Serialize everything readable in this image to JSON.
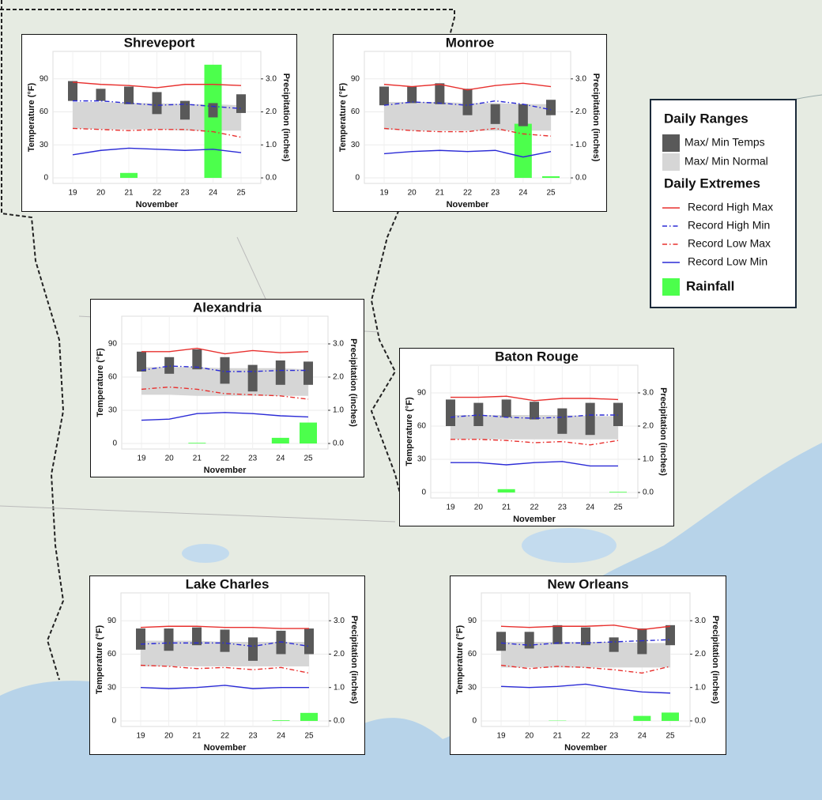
{
  "legend": {
    "headings": [
      "Daily Ranges",
      "Daily Extremes"
    ],
    "entries": [
      {
        "name": "Max/ Min Temps",
        "color": "#595959",
        "kind": "range"
      },
      {
        "name": "Max/ Min Normal",
        "color": "#d6d6d6",
        "kind": "band"
      },
      {
        "name": "Record High Max",
        "color": "#e8302e",
        "kind": "line",
        "dash": "solid"
      },
      {
        "name": "Record High Min",
        "color": "#2b2bd6",
        "kind": "line",
        "dash": "dashdot"
      },
      {
        "name": "Record Low Max",
        "color": "#e8302e",
        "kind": "line",
        "dash": "dashdot"
      },
      {
        "name": "Record Low Min",
        "color": "#2b2bd6",
        "kind": "line",
        "dash": "solid"
      },
      {
        "name": "Rainfall",
        "color": "#4cff4c",
        "kind": "bar"
      }
    ]
  },
  "chart_data": [
    {
      "type": "climate",
      "title": "Shreveport",
      "x_label": "November",
      "y_label": "Temperature (°F)",
      "y2_label": "Precipitation (inches)",
      "categories": [
        "19",
        "20",
        "21",
        "22",
        "23",
        "24",
        "25"
      ],
      "ylim": [
        -5,
        115
      ],
      "yticks": [
        0,
        30,
        60,
        90
      ],
      "y2lim": [
        -0.1667,
        3.8333
      ],
      "y2ticks": [
        {
          "value": 0,
          "label": "0.0"
        },
        {
          "value": 1,
          "label": "1.0"
        },
        {
          "value": 2,
          "label": "2.0"
        },
        {
          "value": 3,
          "label": "3.0"
        }
      ],
      "series": [
        {
          "low": [
            70,
            70,
            67,
            58,
            53,
            55,
            59
          ],
          "high": [
            88,
            81,
            83,
            78,
            70,
            68,
            76
          ]
        },
        {
          "low": [
            45,
            44,
            44,
            44,
            43,
            43,
            43
          ],
          "high": [
            69,
            69,
            68,
            68,
            67,
            67,
            66
          ]
        },
        {
          "values": [
            87,
            85,
            84,
            82,
            85,
            85,
            84
          ]
        },
        {
          "values": [
            70,
            70,
            68,
            66,
            67,
            65,
            63
          ]
        },
        {
          "values": [
            45,
            44,
            43,
            44,
            44,
            42,
            37
          ]
        },
        {
          "values": [
            21,
            25,
            27,
            26,
            25,
            26,
            23
          ]
        },
        {
          "values": [
            0,
            0,
            0.15,
            0,
            0,
            3.43,
            0
          ],
          "axis": "y2"
        }
      ]
    },
    {
      "type": "climate",
      "title": "Monroe",
      "x_label": "November",
      "y_label": "Temperature (°F)",
      "y2_label": "Precipitation (inches)",
      "categories": [
        "19",
        "20",
        "21",
        "22",
        "23",
        "24",
        "25"
      ],
      "ylim": [
        -5,
        115
      ],
      "yticks": [
        0,
        30,
        60,
        90
      ],
      "y2lim": [
        -0.1667,
        3.8333
      ],
      "y2ticks": [
        {
          "value": 0,
          "label": "0.0"
        },
        {
          "value": 1,
          "label": "1.0"
        },
        {
          "value": 2,
          "label": "2.0"
        },
        {
          "value": 3,
          "label": "3.0"
        }
      ],
      "series": [
        {
          "low": [
            66,
            68,
            67,
            57,
            49,
            47,
            57
          ],
          "high": [
            83,
            83,
            86,
            81,
            67,
            67,
            71
          ]
        },
        {
          "low": [
            44,
            43,
            43,
            43,
            43,
            43,
            43
          ],
          "high": [
            69,
            69,
            69,
            68,
            68,
            67,
            67
          ]
        },
        {
          "values": [
            85,
            83,
            85,
            80,
            84,
            86,
            83
          ]
        },
        {
          "values": [
            66,
            69,
            68,
            66,
            70,
            67,
            62
          ]
        },
        {
          "values": [
            45,
            43,
            42,
            42,
            45,
            40,
            38
          ]
        },
        {
          "values": [
            22,
            24,
            25,
            24,
            25,
            19,
            24
          ]
        },
        {
          "values": [
            0,
            0,
            0,
            0,
            0,
            1.64,
            0.05
          ],
          "axis": "y2"
        }
      ]
    },
    {
      "type": "climate",
      "title": "Alexandria",
      "x_label": "November",
      "y_label": "Temperature (°F)",
      "y2_label": "Precipitation (inches)",
      "categories": [
        "19",
        "20",
        "21",
        "22",
        "23",
        "24",
        "25"
      ],
      "ylim": [
        -5,
        115
      ],
      "yticks": [
        0,
        30,
        60,
        90
      ],
      "y2lim": [
        -0.1667,
        3.8333
      ],
      "y2ticks": [
        {
          "value": 0,
          "label": "0.0"
        },
        {
          "value": 1,
          "label": "1.0"
        },
        {
          "value": 2,
          "label": "2.0"
        },
        {
          "value": 3,
          "label": "3.0"
        }
      ],
      "series": [
        {
          "low": [
            65,
            63,
            67,
            54,
            47,
            53,
            53
          ],
          "high": [
            83,
            78,
            85,
            78,
            71,
            75,
            74
          ]
        },
        {
          "low": [
            44,
            44,
            43,
            43,
            43,
            43,
            43
          ],
          "high": [
            69,
            69,
            69,
            68,
            68,
            68,
            67
          ]
        },
        {
          "values": [
            83,
            83,
            86,
            81,
            84,
            82,
            83
          ]
        },
        {
          "values": [
            66,
            70,
            69,
            65,
            65,
            66,
            66
          ]
        },
        {
          "values": [
            49,
            51,
            49,
            45,
            44,
            43,
            40
          ]
        },
        {
          "values": [
            21,
            22,
            27,
            28,
            27,
            25,
            24
          ]
        },
        {
          "values": [
            0,
            0,
            0.02,
            0,
            0,
            0.17,
            0.63
          ],
          "axis": "y2"
        }
      ]
    },
    {
      "type": "climate",
      "title": "Baton Rouge",
      "x_label": "November",
      "y_label": "Temperature (°F)",
      "y2_label": "Precipitation (inches)",
      "categories": [
        "19",
        "20",
        "21",
        "22",
        "23",
        "24",
        "25"
      ],
      "ylim": [
        -5,
        115
      ],
      "yticks": [
        0,
        30,
        60,
        90
      ],
      "y2lim": [
        -0.1667,
        3.8333
      ],
      "y2ticks": [
        {
          "value": 0,
          "label": "0.0"
        },
        {
          "value": 1,
          "label": "1.0"
        },
        {
          "value": 2,
          "label": "2.0"
        },
        {
          "value": 3,
          "label": "3.0"
        }
      ],
      "series": [
        {
          "low": [
            60,
            60,
            68,
            66,
            53,
            52,
            60
          ],
          "high": [
            84,
            81,
            84,
            82,
            76,
            81,
            81
          ]
        },
        {
          "low": [
            48,
            48,
            48,
            48,
            48,
            48,
            48
          ],
          "high": [
            70,
            70,
            70,
            70,
            70,
            69,
            69
          ]
        },
        {
          "values": [
            86,
            86,
            87,
            83,
            85,
            85,
            84
          ]
        },
        {
          "values": [
            68,
            70,
            68,
            67,
            68,
            70,
            70
          ]
        },
        {
          "values": [
            48,
            48,
            47,
            45,
            46,
            43,
            47
          ]
        },
        {
          "values": [
            27,
            27,
            25,
            27,
            28,
            24,
            24
          ]
        },
        {
          "values": [
            0,
            0,
            0.1,
            0,
            0,
            0,
            0.02
          ],
          "axis": "y2"
        }
      ]
    },
    {
      "type": "climate",
      "title": "Lake Charles",
      "x_label": "November",
      "y_label": "Temperature (°F)",
      "y2_label": "Precipitation (inches)",
      "categories": [
        "19",
        "20",
        "21",
        "22",
        "23",
        "24",
        "25"
      ],
      "ylim": [
        -5,
        115
      ],
      "yticks": [
        0,
        30,
        60,
        90
      ],
      "y2lim": [
        -0.1667,
        3.8333
      ],
      "y2ticks": [
        {
          "value": 0,
          "label": "0.0"
        },
        {
          "value": 1,
          "label": "1.0"
        },
        {
          "value": 2,
          "label": "2.0"
        },
        {
          "value": 3,
          "label": "3.0"
        }
      ],
      "series": [
        {
          "low": [
            64,
            63,
            68,
            62,
            54,
            60,
            60
          ],
          "high": [
            83,
            83,
            84,
            82,
            75,
            81,
            83
          ]
        },
        {
          "low": [
            49,
            49,
            49,
            49,
            49,
            49,
            49
          ],
          "high": [
            72,
            72,
            72,
            71,
            71,
            71,
            71
          ]
        },
        {
          "values": [
            84,
            85,
            85,
            84,
            84,
            83,
            83
          ]
        },
        {
          "values": [
            69,
            70,
            70,
            70,
            67,
            71,
            67
          ]
        },
        {
          "values": [
            50,
            49,
            47,
            48,
            46,
            48,
            43
          ]
        },
        {
          "values": [
            30,
            29,
            30,
            32,
            29,
            30,
            30
          ]
        },
        {
          "values": [
            0,
            0,
            0,
            0,
            0,
            0.02,
            0.24
          ],
          "axis": "y2"
        }
      ]
    },
    {
      "type": "climate",
      "title": "New Orleans",
      "x_label": "November",
      "y_label": "Temperature (°F)",
      "y2_label": "Precipitation (inches)",
      "categories": [
        "19",
        "20",
        "21",
        "22",
        "23",
        "24",
        "25"
      ],
      "ylim": [
        -5,
        115
      ],
      "yticks": [
        0,
        30,
        60,
        90
      ],
      "y2lim": [
        -0.1667,
        3.8333
      ],
      "y2ticks": [
        {
          "value": 0,
          "label": "0.0"
        },
        {
          "value": 1,
          "label": "1.0"
        },
        {
          "value": 2,
          "label": "2.0"
        },
        {
          "value": 3,
          "label": "3.0"
        }
      ],
      "series": [
        {
          "low": [
            63,
            65,
            69,
            68,
            62,
            60,
            68
          ],
          "high": [
            80,
            80,
            86,
            84,
            75,
            83,
            86
          ]
        },
        {
          "low": [
            48,
            48,
            48,
            48,
            48,
            48,
            48
          ],
          "high": [
            71,
            71,
            71,
            71,
            71,
            70,
            70
          ]
        },
        {
          "values": [
            85,
            84,
            85,
            85,
            86,
            82,
            85
          ]
        },
        {
          "values": [
            70,
            68,
            70,
            70,
            71,
            72,
            73
          ]
        },
        {
          "values": [
            50,
            47,
            49,
            48,
            46,
            43,
            49
          ]
        },
        {
          "values": [
            31,
            30,
            31,
            33,
            29,
            26,
            25
          ]
        },
        {
          "values": [
            0,
            0,
            0.01,
            0,
            0,
            0.15,
            0.25
          ],
          "axis": "y2"
        }
      ]
    }
  ]
}
